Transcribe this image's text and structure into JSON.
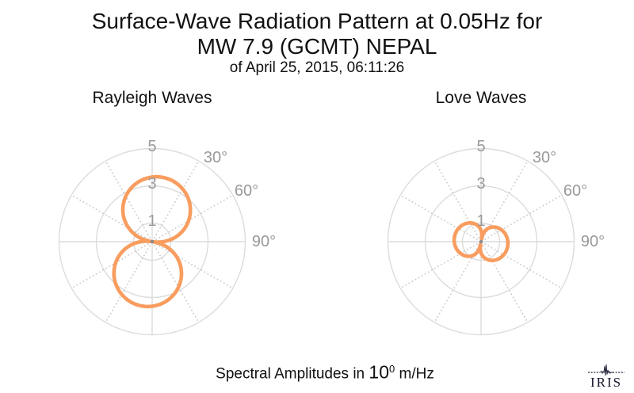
{
  "header": {
    "title_line1": "Surface-Wave Radiation Pattern at 0.05Hz for",
    "title_line2": "MW 7.9 (GCMT) NEPAL",
    "subtitle": "of April 25, 2015, 06:11:26"
  },
  "caption": {
    "prefix": "Spectral Amplitudes in ",
    "base_number": "10",
    "exponent": "0",
    "suffix": " m/Hz"
  },
  "logo": {
    "text": "IRIS"
  },
  "colors": {
    "pattern_stroke": "#F89D5F",
    "grid_line": "#DCDCDC",
    "grid_dots": "#C6C6C6",
    "tick_label": "#999999",
    "center_dot": "#8A8A8A",
    "title_text": "#111111"
  },
  "chart_data": [
    {
      "type": "polar",
      "title": "Rayleigh Waves",
      "radial_ticks": [
        1,
        3,
        5
      ],
      "radial_tick_labels": [
        "1",
        "3",
        "5"
      ],
      "radial_max": 5,
      "angular_ticks_deg": [
        30,
        60,
        90
      ],
      "angular_tick_labels": [
        "30°",
        "60°",
        "90°"
      ],
      "angular_grid_step_deg": 30,
      "grid": "on",
      "units": "10^0 m/Hz",
      "pattern": {
        "model": "r(az) = A * |cos(az - peak_az)|^p",
        "A": 3.5,
        "peak_az_deg": 8,
        "p": 0.9,
        "description": "two-lobed figure-eight, lobes toward azimuth 8° and 188°"
      },
      "samples_az_deg": [
        0,
        15,
        30,
        45,
        60,
        75,
        90,
        105,
        120,
        135,
        150,
        165,
        180,
        195,
        210,
        225,
        240,
        255,
        270,
        285,
        300,
        315,
        330,
        345
      ],
      "samples_r": [
        3.47,
        3.48,
        3.27,
        2.86,
        2.26,
        1.5,
        0.59,
        0.53,
        1.45,
        2.22,
        2.82,
        3.25,
        3.47,
        3.48,
        3.27,
        2.86,
        2.26,
        1.5,
        0.59,
        0.53,
        1.45,
        2.22,
        2.82,
        3.25
      ]
    },
    {
      "type": "polar",
      "title": "Love Waves",
      "radial_ticks": [
        1,
        3,
        5
      ],
      "radial_tick_labels": [
        "1",
        "3",
        "5"
      ],
      "radial_max": 5,
      "angular_ticks_deg": [
        30,
        60,
        90
      ],
      "angular_tick_labels": [
        "30°",
        "60°",
        "90°"
      ],
      "angular_grid_step_deg": 30,
      "grid": "on",
      "units": "10^0 m/Hz",
      "pattern": {
        "model": "r(az) = A * |cos(az - peak_az)|^p",
        "A": 1.45,
        "peak_az_deg": 100,
        "p": 0.5,
        "description": "two small lobes toward azimuth 100° and 280°"
      },
      "samples_az_deg": [
        0,
        15,
        30,
        45,
        60,
        75,
        90,
        105,
        120,
        135,
        150,
        165,
        180,
        195,
        210,
        225,
        240,
        255,
        270,
        285,
        300,
        315,
        330,
        345
      ],
      "samples_r": [
        0.6,
        0.43,
        0.85,
        1.1,
        1.27,
        1.38,
        1.44,
        1.45,
        1.41,
        1.31,
        1.16,
        0.94,
        0.6,
        0.43,
        0.85,
        1.1,
        1.27,
        1.38,
        1.44,
        1.45,
        1.41,
        1.31,
        1.16,
        0.94
      ]
    }
  ]
}
